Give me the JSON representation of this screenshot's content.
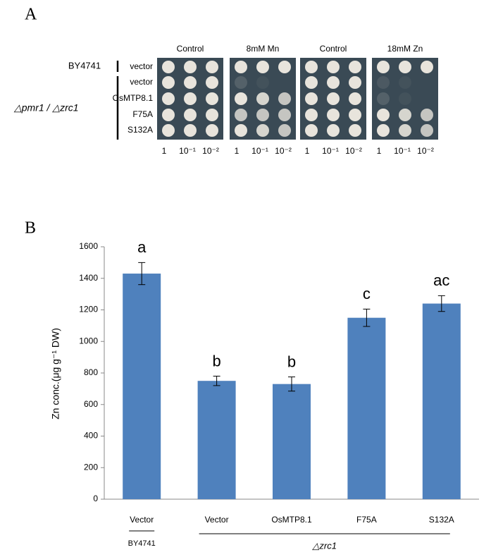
{
  "panel_a": {
    "label": "A",
    "conditions": [
      "Control",
      "8mM Mn",
      "Control",
      "18mM Zn"
    ],
    "strain_wt": "BY4741",
    "strain_mutant": "△pmr1 / △zrc1",
    "rows": [
      "vector",
      "vector",
      "OsMTP8.1",
      "F75A",
      "S132A"
    ],
    "dilutions": [
      "1",
      "10⁻¹",
      "10⁻²"
    ]
  },
  "chart_data": {
    "type": "bar",
    "panel_label": "B",
    "y_label": "Zn conc.(μg g⁻¹ DW)",
    "categories": [
      "Vector",
      "Vector",
      "OsMTP8.1",
      "F75A",
      "S132A"
    ],
    "values": [
      1430,
      750,
      730,
      1150,
      1240
    ],
    "errors": [
      70,
      30,
      45,
      55,
      50
    ],
    "annotations": [
      "a",
      "b",
      "b",
      "c",
      "ac"
    ],
    "groups": [
      "BY4741",
      "△zrc1"
    ],
    "color": "#4f81bd",
    "ylim": [
      0,
      1600
    ],
    "yticks": [
      0,
      200,
      400,
      600,
      800,
      1000,
      1200,
      1400,
      1600
    ]
  }
}
